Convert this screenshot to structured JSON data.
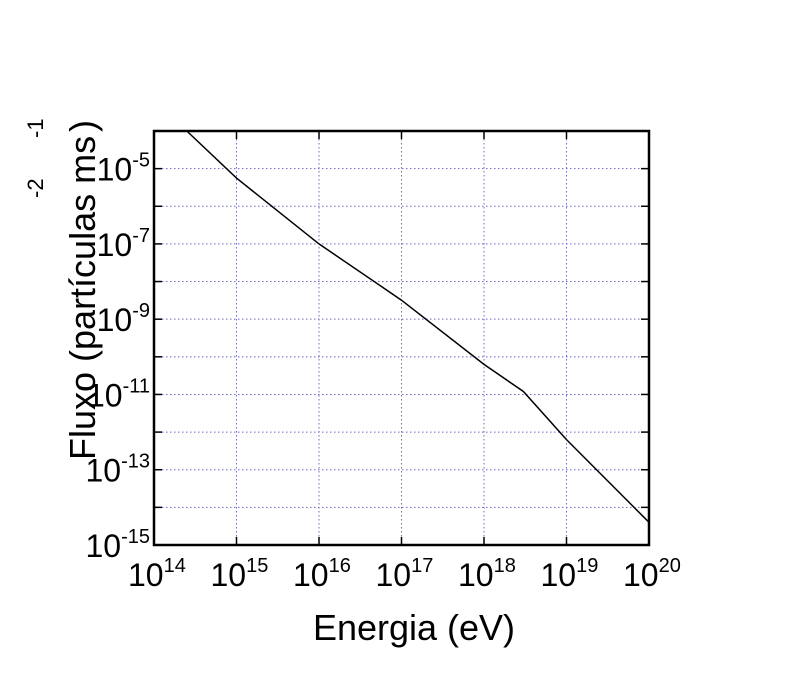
{
  "chart_data": {
    "type": "line",
    "title": "",
    "xlabel": "Energia (eV)",
    "ylabel": "Fluxo (partículas m⁻²s⁻¹)",
    "ylabel_parts": {
      "main": "Fluxo (partículas ms",
      "sup_m": "-2",
      "sup_s": "-1",
      "close": ")"
    },
    "x_scale": "log",
    "y_scale": "log",
    "xlim": [
      100000000000000.0,
      1e+20
    ],
    "ylim": [
      1e-15,
      0.0001
    ],
    "x_ticks": [
      {
        "base": "10",
        "exp": "14"
      },
      {
        "base": "10",
        "exp": "15"
      },
      {
        "base": "10",
        "exp": "16"
      },
      {
        "base": "10",
        "exp": "17"
      },
      {
        "base": "10",
        "exp": "18"
      },
      {
        "base": "10",
        "exp": "19"
      },
      {
        "base": "10",
        "exp": "20"
      }
    ],
    "y_ticks": [
      {
        "base": "10",
        "exp": "-5"
      },
      {
        "base": "10",
        "exp": "-7"
      },
      {
        "base": "10",
        "exp": "-9"
      },
      {
        "base": "10",
        "exp": "-11"
      },
      {
        "base": "10",
        "exp": "-13"
      },
      {
        "base": "10",
        "exp": "-15"
      }
    ],
    "grid": true,
    "series": [
      {
        "x": [
          250000000000000.0,
          1000000000000000.0,
          1e+16,
          1e+17,
          1e+18,
          3e+18,
          1e+19,
          1e+20
        ],
        "y": [
          0.0001,
          5.6e-06,
          1e-07,
          3.2e-09,
          6.3e-11,
          1.2e-11,
          6.3e-13,
          4e-15
        ],
        "color": "#000000"
      }
    ]
  }
}
